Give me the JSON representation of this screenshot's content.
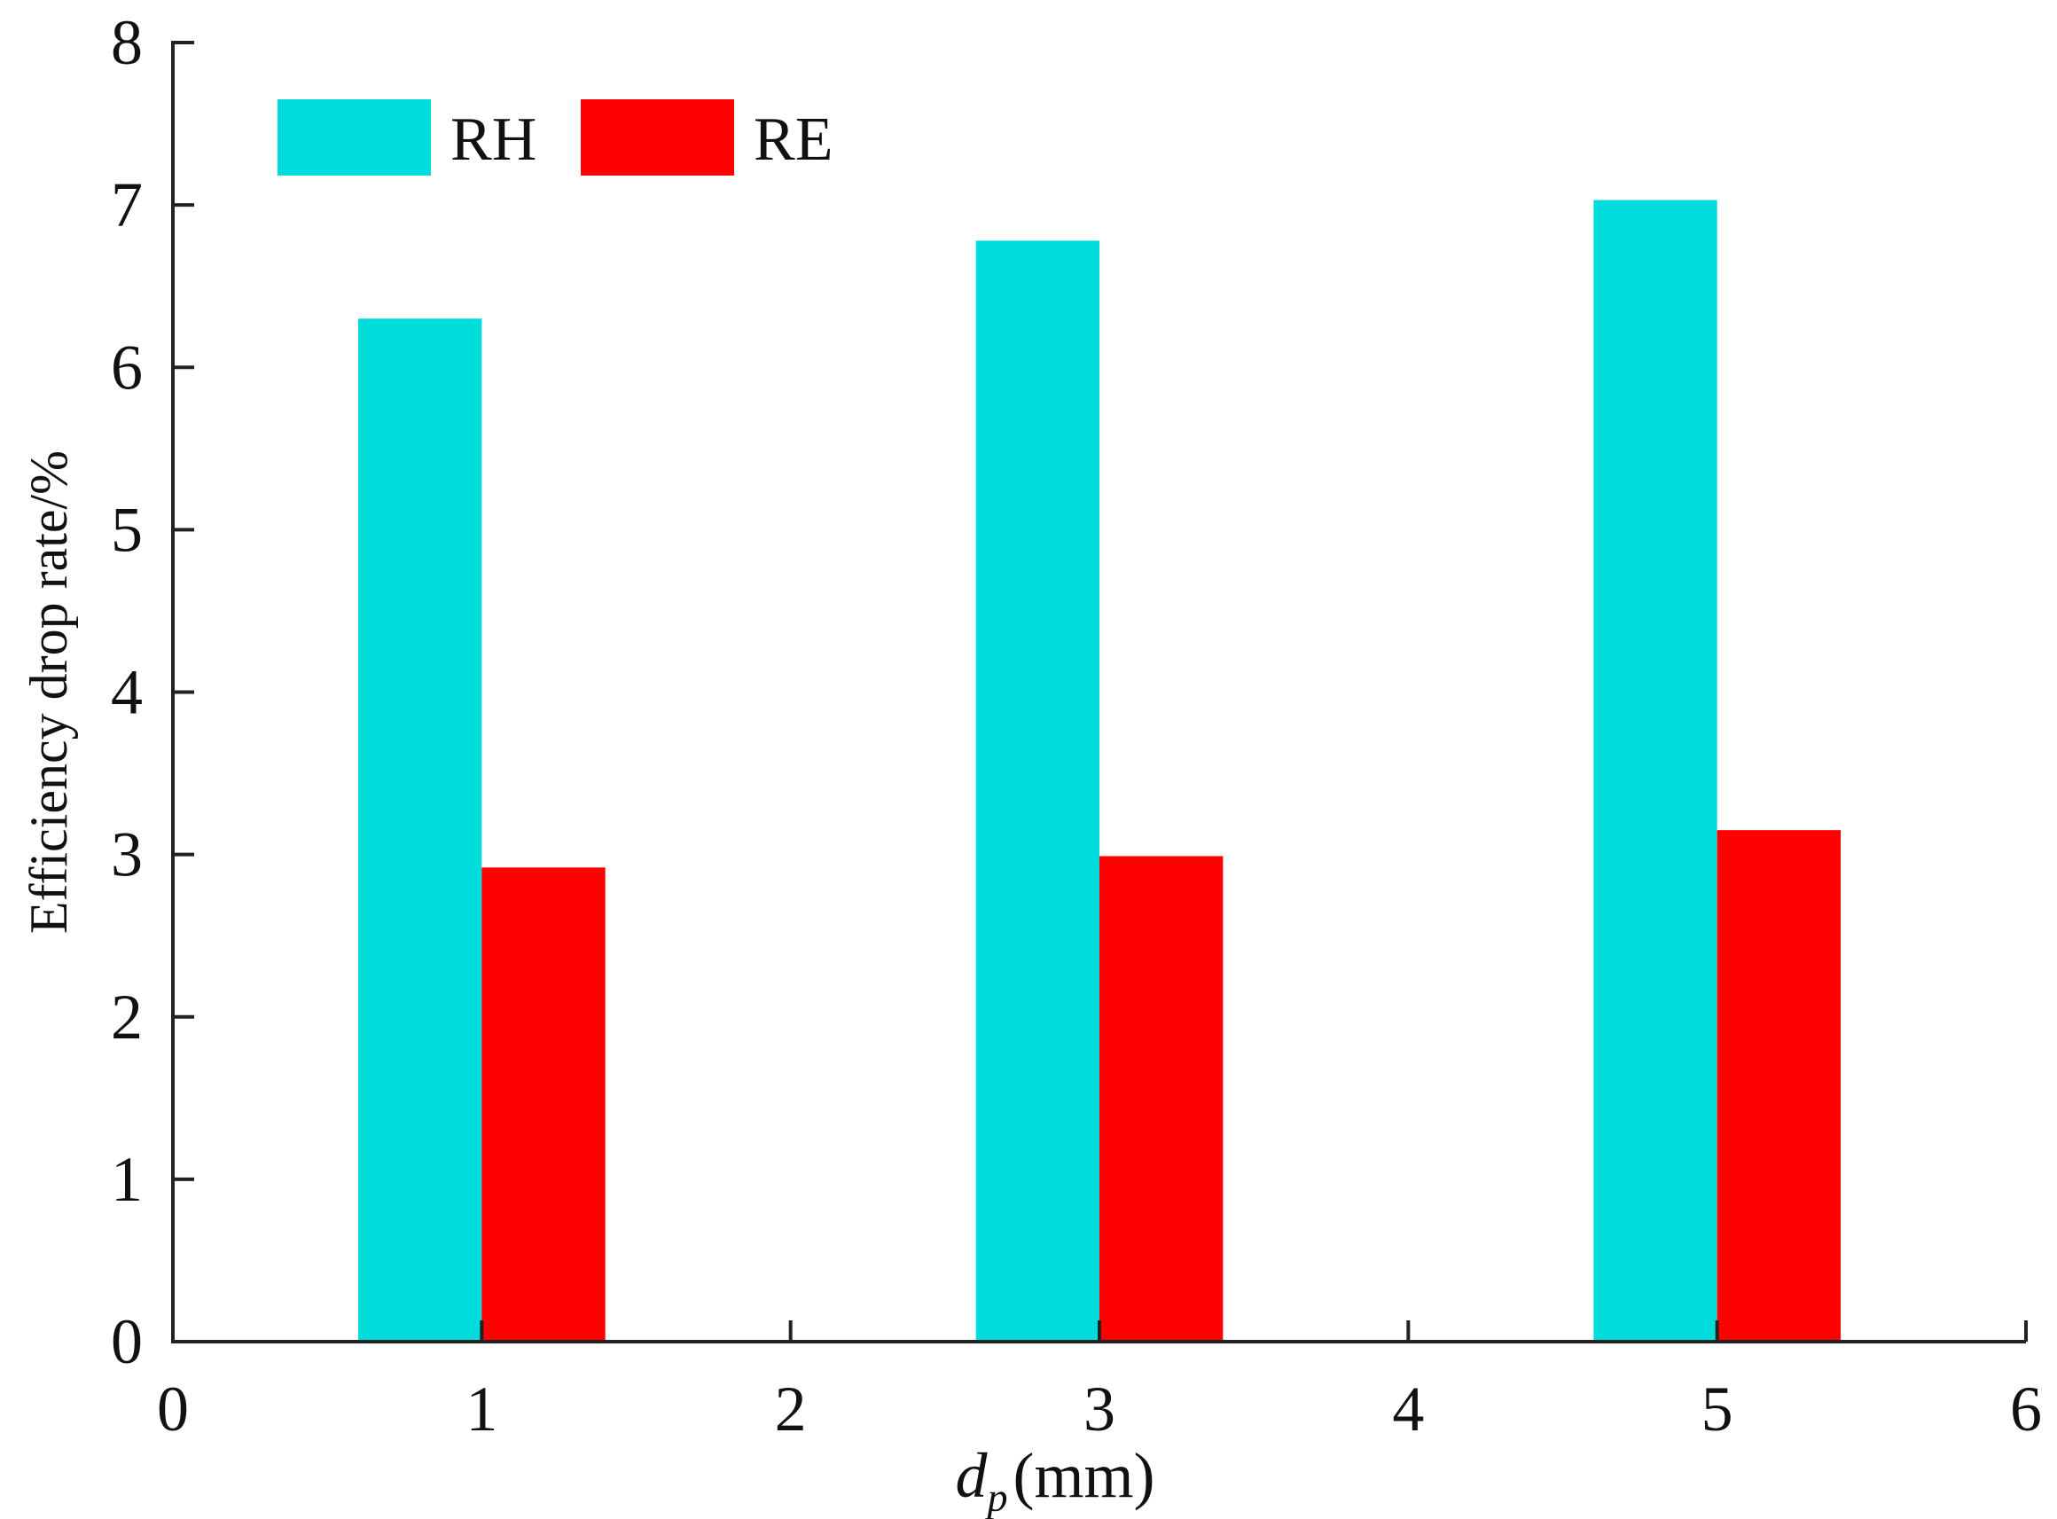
{
  "chart_data": {
    "type": "bar",
    "x_positions": [
      1,
      3,
      5
    ],
    "series": [
      {
        "name": "RH",
        "color": "#00DCDC",
        "values": [
          6.3,
          6.78,
          7.03
        ]
      },
      {
        "name": "RE",
        "color": "#FF0000",
        "values": [
          2.92,
          2.99,
          3.15
        ]
      }
    ],
    "xlabel": "(mm)",
    "xlabel_var": "d",
    "xlabel_sub": "p",
    "ylabel": "Efficiency drop rate/%",
    "xlim": [
      0,
      6
    ],
    "ylim": [
      0,
      8
    ],
    "xticks": [
      "0",
      "1",
      "2",
      "3",
      "4",
      "5",
      "6"
    ],
    "yticks": [
      "0",
      "1",
      "2",
      "3",
      "4",
      "5",
      "6",
      "7",
      "8"
    ],
    "bar_width": 0.8,
    "grid": false,
    "legend": "top-left"
  }
}
